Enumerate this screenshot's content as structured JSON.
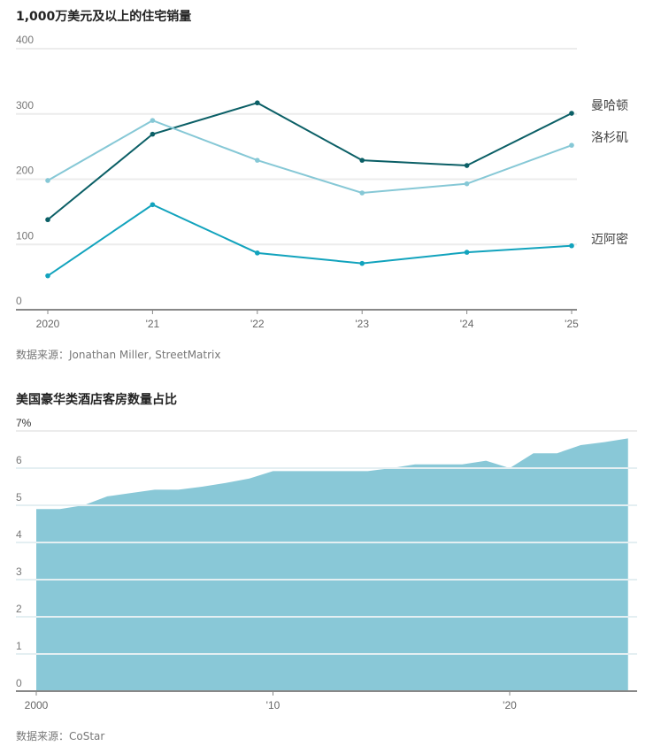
{
  "chart_data": [
    {
      "type": "line",
      "title": "1,000万美元及以上的住宅销量",
      "x": [
        "2020",
        "'21",
        "'22",
        "'23",
        "'24",
        "'25"
      ],
      "ylim": [
        0,
        400
      ],
      "yticks": [
        "0",
        "100",
        "200",
        "300",
        "400"
      ],
      "grid": true,
      "series": [
        {
          "name": "曼哈顿",
          "color": "#0b5f66",
          "values": [
            138,
            269,
            317,
            229,
            221,
            301
          ]
        },
        {
          "name": "洛杉矶",
          "color": "#86c8d6",
          "values": [
            198,
            290,
            229,
            179,
            193,
            252
          ]
        },
        {
          "name": "迈阿密",
          "color": "#12a3bd",
          "values": [
            52,
            161,
            87,
            71,
            88,
            98
          ]
        }
      ],
      "source": "数据来源：Jonathan Miller, StreetMatrix"
    },
    {
      "type": "area",
      "title": "美国豪华类酒店客房数量占比",
      "x": [
        2000,
        2001,
        2002,
        2003,
        2004,
        2005,
        2006,
        2007,
        2008,
        2009,
        2010,
        2011,
        2012,
        2013,
        2014,
        2015,
        2016,
        2017,
        2018,
        2019,
        2020,
        2021,
        2022,
        2023,
        2024,
        2025
      ],
      "values": [
        4.9,
        4.9,
        5.0,
        5.24,
        5.33,
        5.42,
        5.42,
        5.5,
        5.6,
        5.72,
        5.92,
        5.92,
        5.92,
        5.92,
        5.92,
        6.0,
        6.1,
        6.1,
        6.1,
        6.2,
        6.0,
        6.4,
        6.4,
        6.62,
        6.7,
        6.8
      ],
      "color": "#89c8d7",
      "ylim": [
        0,
        7
      ],
      "yticks": [
        "0",
        "1",
        "2",
        "3",
        "4",
        "5",
        "6",
        "7%"
      ],
      "xticks": [
        {
          "value": 2000,
          "label": "2000"
        },
        {
          "value": 2010,
          "label": "'10"
        },
        {
          "value": 2020,
          "label": "'20"
        }
      ],
      "grid": true,
      "source": "数据来源：CoStar"
    }
  ]
}
